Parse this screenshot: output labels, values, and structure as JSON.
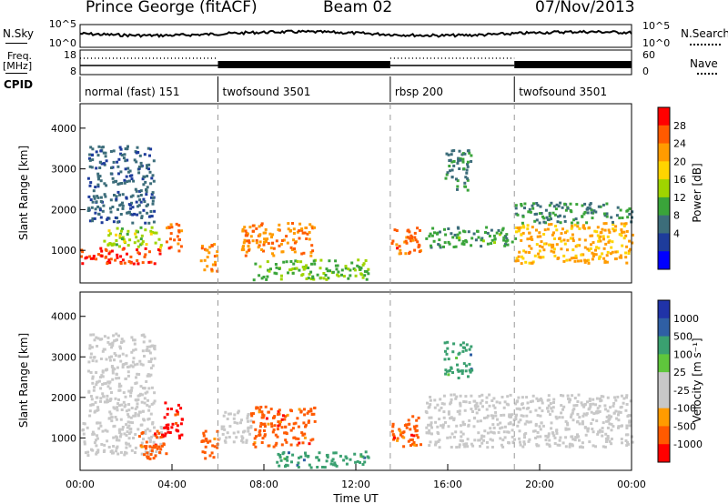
{
  "header": {
    "station": "Prince George (fitACF)",
    "beam": "Beam 02",
    "date": "07/Nov/2013"
  },
  "side_labels": {
    "nsky": "N.Sky",
    "freq_line1": "Freq.",
    "freq_line2": "[MHz]",
    "cpid": "CPID",
    "nsearch": "N.Search",
    "nave": "Nave"
  },
  "chart_data": [
    {
      "type": "line",
      "title": "",
      "left_label": "N.Sky",
      "right_label": "N.Search",
      "left_ticks": [
        "10^5",
        "10^0"
      ],
      "right_ticks": [
        "10^5",
        "10^0"
      ],
      "series": [
        {
          "name": "N.Sky",
          "style": "solid"
        },
        {
          "name": "N.Search",
          "style": "dotted"
        }
      ]
    },
    {
      "type": "line",
      "left_label": "Freq. [MHz]",
      "right_label": "Nave",
      "left_ticks": [
        "18",
        "8"
      ],
      "right_ticks": [
        "60",
        "0"
      ],
      "segments": [
        {
          "start": 0.0,
          "end": 6.0,
          "style": "dotted"
        },
        {
          "start": 6.0,
          "end": 13.5,
          "style": "solid"
        },
        {
          "start": 13.5,
          "end": 18.9,
          "style": "dotted"
        },
        {
          "start": 18.9,
          "end": 24.0,
          "style": "solid"
        }
      ]
    },
    {
      "type": "table",
      "label": "CPID",
      "programs": [
        {
          "name": "normal (fast) 151",
          "start": 0.0,
          "end": 6.0
        },
        {
          "name": "twofsound 3501",
          "start": 6.0,
          "end": 13.5
        },
        {
          "name": "rbsp 200",
          "start": 13.5,
          "end": 18.9
        },
        {
          "name": "twofsound 3501",
          "start": 18.9,
          "end": 24.0
        }
      ]
    },
    {
      "type": "heatmap",
      "ylabel": "Slant Range [km]",
      "yticks": [
        1000,
        2000,
        3000,
        4000
      ],
      "ylim": [
        200,
        4600
      ],
      "colorbar": {
        "label": "Power [dB]",
        "ticks": [
          "28",
          "24",
          "20",
          "16",
          "12",
          "8",
          "4"
        ],
        "colors": [
          "#ff0000",
          "#ff5a00",
          "#ff9b00",
          "#ffd400",
          "#9fd400",
          "#3aa43a",
          "#3c6d7a",
          "#1e3c9b",
          "#0000ff"
        ]
      },
      "regions": [
        {
          "t0": 0.0,
          "t1": 3.5,
          "r0": 700,
          "r1": 1100,
          "level": 26
        },
        {
          "t0": 1.0,
          "t1": 3.5,
          "r0": 1100,
          "r1": 1600,
          "level": 14
        },
        {
          "t0": 3.7,
          "t1": 4.4,
          "r0": 1000,
          "r1": 1700,
          "level": 24
        },
        {
          "t0": 0.3,
          "t1": 3.2,
          "r0": 1700,
          "r1": 3600,
          "level": 6
        },
        {
          "t0": 5.2,
          "t1": 6.0,
          "r0": 500,
          "r1": 1200,
          "level": 22
        },
        {
          "t0": 7.0,
          "t1": 10.2,
          "r0": 900,
          "r1": 1700,
          "level": 22
        },
        {
          "t0": 7.5,
          "t1": 12.5,
          "r0": 300,
          "r1": 800,
          "level": 12
        },
        {
          "t0": 13.5,
          "t1": 14.8,
          "r0": 900,
          "r1": 1600,
          "level": 24
        },
        {
          "t0": 15.0,
          "t1": 18.9,
          "r0": 1100,
          "r1": 1600,
          "level": 10
        },
        {
          "t0": 15.8,
          "t1": 17.0,
          "r0": 2500,
          "r1": 3500,
          "level": 8
        },
        {
          "t0": 18.9,
          "t1": 24.0,
          "r0": 700,
          "r1": 1700,
          "level": 20
        },
        {
          "t0": 18.9,
          "t1": 24.0,
          "r0": 1700,
          "r1": 2200,
          "level": 8
        }
      ]
    },
    {
      "type": "heatmap",
      "ylabel": "Slant Range [km]",
      "xlabel": "Time UT",
      "xticks": [
        "00:00",
        "04:00",
        "08:00",
        "12:00",
        "16:00",
        "20:00",
        "00:00"
      ],
      "yticks": [
        1000,
        2000,
        3000,
        4000
      ],
      "ylim": [
        200,
        4600
      ],
      "colorbar": {
        "label": "Velocity [m s⁻¹]",
        "ticks": [
          "1000",
          "500",
          "100",
          "25",
          "-25",
          "-100",
          "-500",
          "-1000"
        ],
        "colors": [
          "#2033a8",
          "#2f5fa4",
          "#3aa070",
          "#5fc63c",
          "#c8c8c8",
          "#c8c8c8",
          "#ff9b00",
          "#ff5a00",
          "#ff0000"
        ]
      },
      "regions": [
        {
          "t0": 0.0,
          "t1": 3.5,
          "r0": 600,
          "r1": 1400,
          "level": 0
        },
        {
          "t0": 0.3,
          "t1": 3.2,
          "r0": 1400,
          "r1": 3600,
          "level": 10
        },
        {
          "t0": 3.5,
          "t1": 4.4,
          "r0": 1000,
          "r1": 1900,
          "level": -800
        },
        {
          "t0": 2.5,
          "t1": 3.8,
          "r0": 500,
          "r1": 1200,
          "level": -300
        },
        {
          "t0": 5.2,
          "t1": 6.0,
          "r0": 500,
          "r1": 1200,
          "level": -200
        },
        {
          "t0": 6.0,
          "t1": 7.4,
          "r0": 900,
          "r1": 1700,
          "level": 0
        },
        {
          "t0": 7.4,
          "t1": 10.2,
          "r0": 800,
          "r1": 1800,
          "level": -300
        },
        {
          "t0": 8.5,
          "t1": 12.5,
          "r0": 300,
          "r1": 700,
          "level": 300
        },
        {
          "t0": 13.5,
          "t1": 14.8,
          "r0": 800,
          "r1": 1600,
          "level": -400
        },
        {
          "t0": 15.0,
          "t1": 24.0,
          "r0": 800,
          "r1": 2100,
          "level": 0
        },
        {
          "t0": 15.8,
          "t1": 17.0,
          "r0": 2500,
          "r1": 3400,
          "level": 300
        }
      ]
    }
  ]
}
